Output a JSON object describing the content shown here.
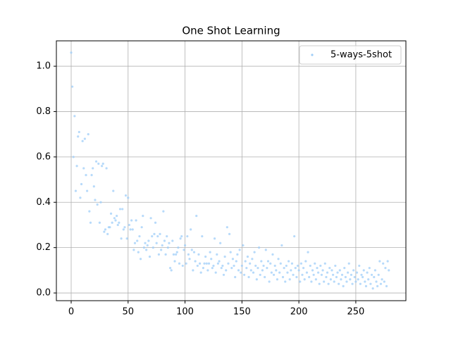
{
  "chart_data": {
    "type": "scatter",
    "title": "One Shot Learning",
    "xlim": [
      -13,
      294
    ],
    "ylim": [
      -0.034,
      1.112
    ],
    "xticks": [
      0,
      50,
      100,
      150,
      200,
      250
    ],
    "yticks": [
      {
        "value": 0,
        "label": "0.0"
      },
      0.2,
      0.4,
      0.6,
      0.8,
      {
        "value": 1,
        "label": "1.0"
      }
    ],
    "grid": true,
    "legend": "upper-right",
    "series": [
      {
        "name": "5-ways-5shot",
        "color": "#9fcdf8",
        "x": [
          0,
          1,
          2,
          3,
          4,
          5,
          6,
          7,
          8,
          9,
          10,
          11,
          12,
          13,
          14,
          15,
          16,
          17,
          18,
          19,
          20,
          21,
          22,
          23,
          24,
          25,
          26,
          27,
          28,
          29,
          30,
          31,
          32,
          33,
          34,
          35,
          36,
          37,
          38,
          39,
          40,
          41,
          42,
          43,
          44,
          45,
          46,
          47,
          48,
          49,
          50,
          51,
          52,
          53,
          54,
          55,
          56,
          57,
          58,
          59,
          60,
          61,
          62,
          63,
          64,
          65,
          66,
          67,
          68,
          69,
          70,
          71,
          72,
          73,
          74,
          75,
          76,
          77,
          78,
          79,
          80,
          81,
          82,
          83,
          84,
          85,
          86,
          87,
          88,
          89,
          90,
          91,
          92,
          93,
          94,
          95,
          96,
          97,
          98,
          99,
          100,
          101,
          102,
          103,
          104,
          105,
          106,
          107,
          108,
          109,
          110,
          111,
          112,
          113,
          114,
          115,
          116,
          117,
          118,
          119,
          120,
          121,
          122,
          123,
          124,
          125,
          126,
          127,
          128,
          129,
          130,
          131,
          132,
          133,
          134,
          135,
          136,
          137,
          138,
          139,
          140,
          141,
          142,
          143,
          144,
          145,
          146,
          147,
          148,
          149,
          150,
          151,
          152,
          153,
          154,
          155,
          156,
          157,
          158,
          159,
          160,
          161,
          162,
          163,
          164,
          165,
          166,
          167,
          168,
          169,
          170,
          171,
          172,
          173,
          174,
          175,
          176,
          177,
          178,
          179,
          180,
          181,
          182,
          183,
          184,
          185,
          186,
          187,
          188,
          189,
          190,
          191,
          192,
          193,
          194,
          195,
          196,
          197,
          198,
          199,
          200,
          201,
          202,
          203,
          204,
          205,
          206,
          207,
          208,
          209,
          210,
          211,
          212,
          213,
          214,
          215,
          216,
          217,
          218,
          219,
          220,
          221,
          222,
          223,
          224,
          225,
          226,
          227,
          228,
          229,
          230,
          231,
          232,
          233,
          234,
          235,
          236,
          237,
          238,
          239,
          240,
          241,
          242,
          243,
          244,
          245,
          246,
          247,
          248,
          249,
          250,
          251,
          252,
          253,
          254,
          255,
          256,
          257,
          258,
          259,
          260,
          261,
          262,
          263,
          264,
          265,
          266,
          267,
          268,
          269,
          270,
          271,
          272,
          273,
          274,
          275,
          276,
          277,
          278,
          279
        ],
        "values": [
          1.06,
          0.91,
          0.6,
          0.78,
          0.45,
          0.56,
          0.69,
          0.71,
          0.42,
          0.48,
          0.67,
          0.55,
          0.68,
          0.52,
          0.45,
          0.7,
          0.36,
          0.31,
          0.52,
          0.55,
          0.47,
          0.41,
          0.58,
          0.39,
          0.57,
          0.31,
          0.4,
          0.56,
          0.57,
          0.27,
          0.28,
          0.55,
          0.26,
          0.29,
          0.29,
          0.35,
          0.31,
          0.45,
          0.33,
          0.32,
          0.34,
          0.3,
          0.31,
          0.37,
          0.24,
          0.37,
          0.28,
          0.29,
          0.43,
          0.24,
          0.42,
          0.3,
          0.28,
          0.32,
          0.28,
          0.19,
          0.22,
          0.32,
          0.23,
          0.18,
          0.25,
          0.15,
          0.29,
          0.34,
          0.2,
          0.22,
          0.19,
          0.21,
          0.23,
          0.16,
          0.33,
          0.25,
          0.2,
          0.26,
          0.31,
          0.22,
          0.25,
          0.17,
          0.26,
          0.19,
          0.21,
          0.36,
          0.23,
          0.17,
          0.25,
          0.2,
          0.22,
          0.11,
          0.1,
          0.23,
          0.17,
          0.14,
          0.17,
          0.18,
          0.2,
          0.13,
          0.24,
          0.25,
          0.12,
          0.19,
          0.21,
          0.13,
          0.25,
          0.17,
          0.15,
          0.28,
          0.19,
          0.1,
          0.18,
          0.14,
          0.34,
          0.12,
          0.17,
          0.13,
          0.09,
          0.25,
          0.11,
          0.13,
          0.16,
          0.13,
          0.1,
          0.13,
          0.18,
          0.15,
          0.11,
          0.12,
          0.24,
          0.09,
          0.17,
          0.13,
          0.14,
          0.22,
          0.11,
          0.12,
          0.08,
          0.16,
          0.1,
          0.29,
          0.13,
          0.26,
          0.18,
          0.11,
          0.15,
          0.12,
          0.07,
          0.14,
          0.17,
          0.1,
          0.19,
          0.09,
          0.12,
          0.21,
          0.08,
          0.14,
          0.11,
          0.16,
          0.07,
          0.13,
          0.1,
          0.15,
          0.09,
          0.18,
          0.12,
          0.06,
          0.11,
          0.2,
          0.08,
          0.14,
          0.1,
          0.12,
          0.07,
          0.19,
          0.11,
          0.14,
          0.05,
          0.13,
          0.09,
          0.17,
          0.08,
          0.12,
          0.1,
          0.06,
          0.15,
          0.09,
          0.13,
          0.21,
          0.07,
          0.11,
          0.05,
          0.12,
          0.09,
          0.14,
          0.06,
          0.1,
          0.13,
          0.08,
          0.25,
          0.11,
          0.07,
          0.12,
          0.1,
          0.05,
          0.13,
          0.08,
          0.11,
          0.06,
          0.14,
          0.09,
          0.18,
          0.07,
          0.12,
          0.05,
          0.1,
          0.08,
          0.13,
          0.06,
          0.11,
          0.09,
          0.04,
          0.12,
          0.08,
          0.1,
          0.05,
          0.13,
          0.07,
          0.09,
          0.04,
          0.11,
          0.06,
          0.1,
          0.08,
          0.05,
          0.12,
          0.07,
          0.09,
          0.04,
          0.1,
          0.06,
          0.08,
          0.03,
          0.11,
          0.07,
          0.05,
          0.09,
          0.13,
          0.06,
          0.08,
          0.04,
          0.1,
          0.07,
          0.05,
          0.09,
          0.06,
          0.12,
          0.04,
          0.08,
          0.07,
          0.1,
          0.05,
          0.03,
          0.09,
          0.06,
          0.11,
          0.04,
          0.08,
          0.02,
          0.07,
          0.1,
          0.05,
          0.03,
          0.08,
          0.14,
          0.04,
          0.06,
          0.13,
          0.05,
          0.11,
          0.03,
          0.14,
          0.1
        ]
      }
    ]
  }
}
